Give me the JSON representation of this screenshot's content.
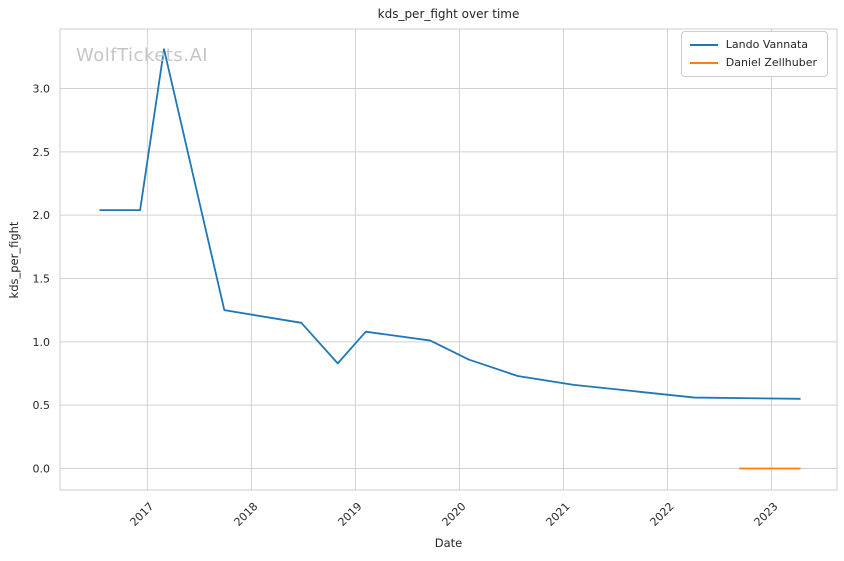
{
  "watermark": "WolfTickets.AI",
  "chart_data": {
    "type": "line",
    "title": "kds_per_fight over time",
    "xlabel": "Date",
    "ylabel": "kds_per_fight",
    "grid": true,
    "legend_position": "top-right",
    "xlim": [
      2016.16,
      2023.63
    ],
    "ylim": [
      -0.17,
      3.47
    ],
    "x_ticks": [
      2017,
      2018,
      2019,
      2020,
      2021,
      2022,
      2023
    ],
    "x_tick_labels": [
      "2017",
      "2018",
      "2019",
      "2020",
      "2021",
      "2022",
      "2023"
    ],
    "y_ticks": [
      0.0,
      0.5,
      1.0,
      1.5,
      2.0,
      2.5,
      3.0
    ],
    "y_tick_labels": [
      "0.0",
      "0.5",
      "1.0",
      "1.5",
      "2.0",
      "2.5",
      "3.0"
    ],
    "colors": {
      "grid": "#d2d2d2",
      "spine": "#cccccc",
      "text": "#262626",
      "watermark": "#c6c6c6"
    },
    "series": [
      {
        "name": "Lando Vannata",
        "color": "#1f77b4",
        "x": [
          2016.54,
          2016.93,
          2017.16,
          2017.74,
          2018.48,
          2018.83,
          2019.1,
          2019.72,
          2020.09,
          2020.56,
          2021.1,
          2022.26,
          2023.28
        ],
        "y": [
          2.04,
          2.04,
          3.31,
          1.25,
          1.15,
          0.83,
          1.08,
          1.01,
          0.86,
          0.73,
          0.66,
          0.56,
          0.55
        ]
      },
      {
        "name": "Daniel Zellhuber",
        "color": "#ff7f0e",
        "x": [
          2022.69,
          2023.28
        ],
        "y": [
          0.0,
          0.0
        ]
      }
    ]
  }
}
